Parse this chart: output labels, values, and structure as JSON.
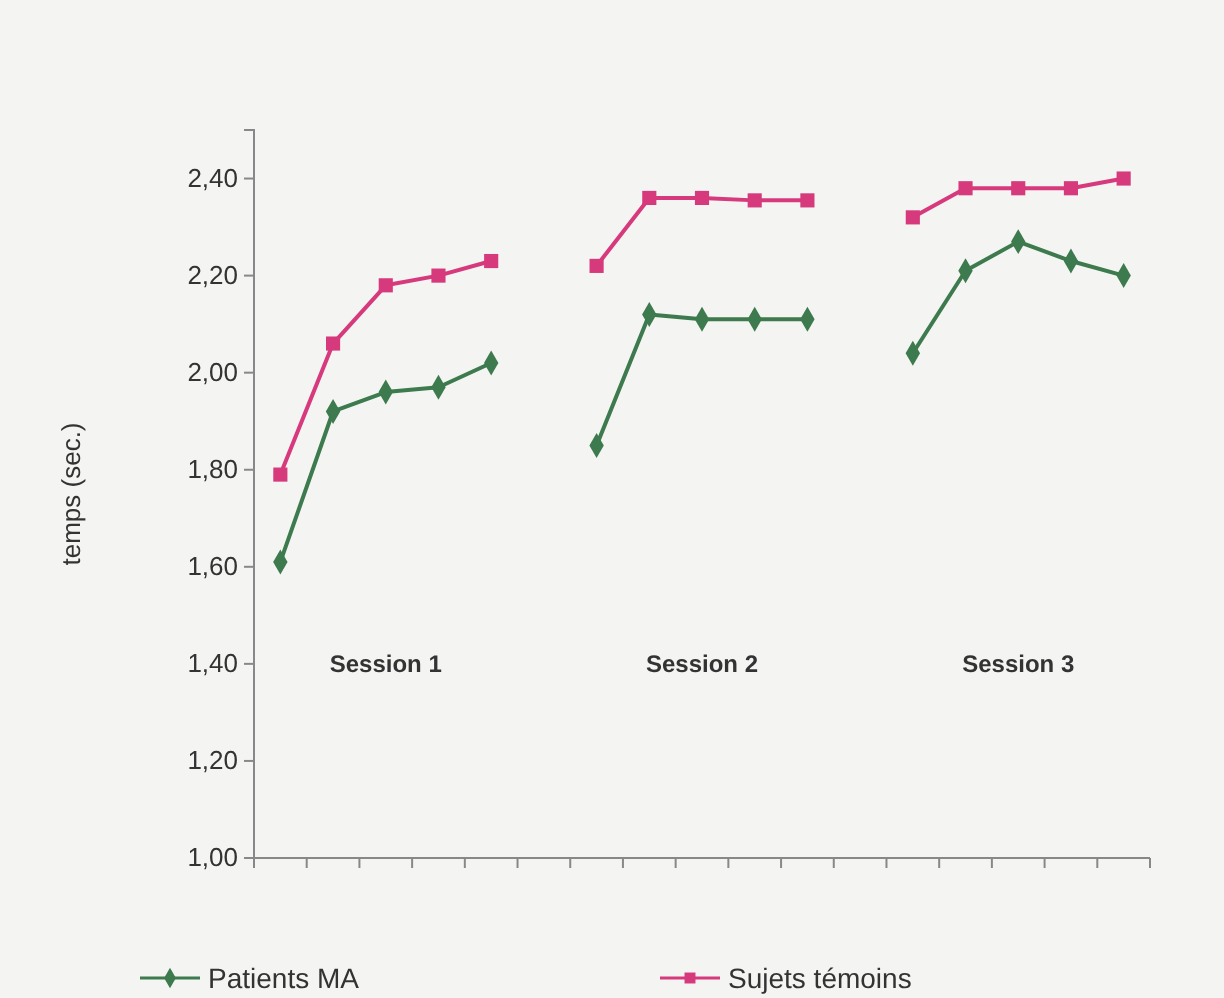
{
  "chart_data": {
    "type": "line",
    "ylabel": "temps (sec.)",
    "categories": [
      null,
      null,
      null,
      null,
      null,
      null,
      null,
      null,
      null,
      null,
      null,
      null,
      null,
      null,
      null,
      null,
      null
    ],
    "series": [
      {
        "name": "Patients MA",
        "color": "#3d7a4e",
        "marker": "diamond",
        "values": [
          1.61,
          1.92,
          1.96,
          1.97,
          2.02,
          null,
          1.85,
          2.12,
          2.11,
          2.11,
          2.11,
          null,
          2.04,
          2.21,
          2.27,
          2.23,
          2.2
        ]
      },
      {
        "name": "Sujets témoins",
        "color": "#d63a7c",
        "marker": "square",
        "values": [
          1.79,
          2.06,
          2.18,
          2.2,
          2.23,
          null,
          2.22,
          2.36,
          2.36,
          2.355,
          2.355,
          null,
          2.32,
          2.38,
          2.38,
          2.38,
          2.4
        ]
      }
    ],
    "ylim": [
      1.0,
      2.5
    ],
    "yticks": [
      {
        "value": 1.0,
        "label": "1,00"
      },
      {
        "value": 1.2,
        "label": "1,20"
      },
      {
        "value": 1.4,
        "label": "1,40"
      },
      {
        "value": 1.6,
        "label": "1,60"
      },
      {
        "value": 1.8,
        "label": "1,80"
      },
      {
        "value": 2.0,
        "label": "2,00"
      },
      {
        "value": 2.2,
        "label": "2,20"
      },
      {
        "value": 2.4,
        "label": "2,40"
      }
    ],
    "annotations": [
      "Session 1",
      "Session 2",
      "Session 3"
    ],
    "grid": false,
    "legend": "bottom"
  }
}
